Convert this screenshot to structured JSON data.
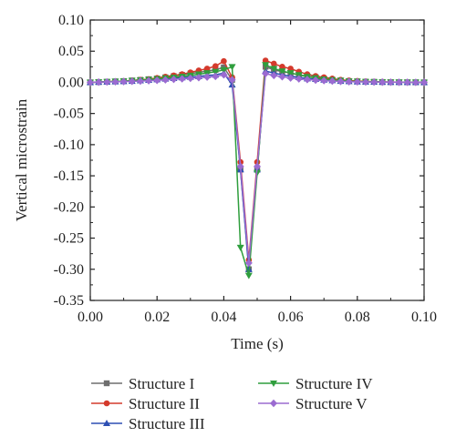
{
  "chart_data": {
    "type": "line",
    "title": "",
    "xlabel": "Time (s)",
    "ylabel": "Vertical microstrain",
    "xlim": [
      0.0,
      0.1
    ],
    "ylim": [
      -0.35,
      0.1
    ],
    "xticks": [
      "0.00",
      "0.02",
      "0.04",
      "0.06",
      "0.08",
      "0.10"
    ],
    "yticks": [
      "0.10",
      "0.05",
      "0.00",
      "-0.05",
      "-0.10",
      "-0.15",
      "-0.20",
      "-0.25",
      "-0.30",
      "-0.35"
    ],
    "grid": false,
    "legend_position": "bottom",
    "x": [
      0,
      0.0025,
      0.005,
      0.0075,
      0.01,
      0.0125,
      0.015,
      0.0175,
      0.02,
      0.0225,
      0.025,
      0.0275,
      0.03,
      0.0325,
      0.035,
      0.0375,
      0.04,
      0.0425,
      0.045,
      0.0475,
      0.05,
      0.0525,
      0.055,
      0.0575,
      0.06,
      0.0625,
      0.065,
      0.0675,
      0.07,
      0.0725,
      0.075,
      0.0775,
      0.08,
      0.0825,
      0.085,
      0.0875,
      0.09,
      0.0925,
      0.095,
      0.0975,
      0.1
    ],
    "series": [
      {
        "name": "Structure I",
        "color": "#6e6e6e",
        "marker": "square",
        "values": [
          0,
          0.0005,
          0.001,
          0.0015,
          0.002,
          0.003,
          0.004,
          0.005,
          0.006,
          0.008,
          0.01,
          0.012,
          0.014,
          0.016,
          0.018,
          0.02,
          0.024,
          0.004,
          -0.14,
          -0.3,
          -0.14,
          0.025,
          0.02,
          0.017,
          0.015,
          0.012,
          0.01,
          0.008,
          0.006,
          0.004,
          0.003,
          0.002,
          0.0015,
          0.001,
          0.0008,
          0.0005,
          0.0003,
          0.0002,
          0.0001,
          0.0001,
          0
        ]
      },
      {
        "name": "Structure II",
        "color": "#d43a2c",
        "marker": "circle",
        "values": [
          0,
          0.0005,
          0.001,
          0.0015,
          0.002,
          0.003,
          0.004,
          0.005,
          0.007,
          0.009,
          0.011,
          0.013,
          0.016,
          0.019,
          0.022,
          0.026,
          0.034,
          0.008,
          -0.128,
          -0.285,
          -0.128,
          0.035,
          0.03,
          0.025,
          0.022,
          0.017,
          0.013,
          0.01,
          0.008,
          0.006,
          0.004,
          0.003,
          0.0022,
          0.0015,
          0.001,
          0.0007,
          0.0005,
          0.0003,
          0.0002,
          0.0001,
          0
        ]
      },
      {
        "name": "Structure III",
        "color": "#2d4fb3",
        "marker": "triangle-up",
        "values": [
          0,
          0.0004,
          0.0008,
          0.0012,
          0.0016,
          0.002,
          0.0028,
          0.0036,
          0.0044,
          0.0055,
          0.0065,
          0.0075,
          0.0085,
          0.0095,
          0.011,
          0.012,
          0.015,
          -0.004,
          -0.14,
          -0.3,
          -0.14,
          0.018,
          0.015,
          0.012,
          0.01,
          0.008,
          0.006,
          0.005,
          0.004,
          0.003,
          0.002,
          0.0015,
          0.001,
          0.0008,
          0.0006,
          0.0004,
          0.0003,
          0.0002,
          0.0001,
          0.0001,
          0
        ]
      },
      {
        "name": "Structure IV",
        "color": "#2f9e3d",
        "marker": "triangle-down",
        "values": [
          0,
          0.0005,
          0.001,
          0.0015,
          0.002,
          0.0028,
          0.0036,
          0.0045,
          0.0055,
          0.0068,
          0.008,
          0.0095,
          0.011,
          0.013,
          0.015,
          0.017,
          0.02,
          0.025,
          -0.265,
          -0.31,
          -0.145,
          0.028,
          0.022,
          0.018,
          0.015,
          0.012,
          0.009,
          0.007,
          0.005,
          0.004,
          0.003,
          0.002,
          0.0015,
          0.001,
          0.0008,
          0.0005,
          0.0003,
          0.0002,
          0.0001,
          0.0001,
          0
        ]
      },
      {
        "name": "Structure V",
        "color": "#9b6bd1",
        "marker": "diamond",
        "values": [
          0,
          0.0003,
          0.0006,
          0.0009,
          0.0012,
          0.0016,
          0.002,
          0.0026,
          0.0032,
          0.004,
          0.0048,
          0.0056,
          0.0065,
          0.0075,
          0.0085,
          0.0095,
          0.012,
          0.004,
          -0.135,
          -0.29,
          -0.135,
          0.014,
          0.011,
          0.009,
          0.007,
          0.0055,
          0.0045,
          0.0035,
          0.0027,
          0.002,
          0.0015,
          0.001,
          0.0008,
          0.0006,
          0.0004,
          0.0003,
          0.0002,
          0.0001,
          0.0001,
          0,
          0
        ]
      }
    ]
  }
}
